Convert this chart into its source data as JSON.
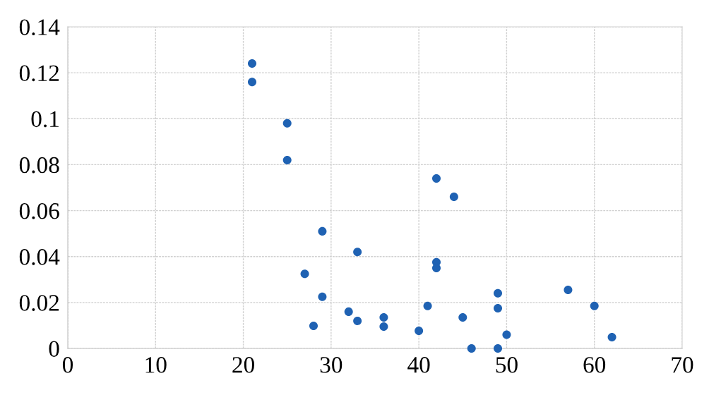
{
  "chart_data": {
    "type": "scatter",
    "x": [
      21,
      21,
      25,
      25,
      42,
      44,
      29,
      33,
      42,
      42,
      27,
      57,
      49,
      29,
      41,
      60,
      32,
      49,
      36,
      45,
      33,
      36,
      28,
      40,
      50,
      62,
      46,
      49
    ],
    "values": [
      0.124,
      0.116,
      0.098,
      0.082,
      0.074,
      0.066,
      0.051,
      0.042,
      0.0375,
      0.035,
      0.0325,
      0.0255,
      0.024,
      0.0225,
      0.0185,
      0.0185,
      0.016,
      0.0175,
      0.0135,
      0.0135,
      0.012,
      0.0095,
      0.0098,
      0.0077,
      0.006,
      0.0049,
      0,
      0
    ],
    "color": "#1f62b3",
    "marker": "circle",
    "xlim": [
      0,
      70
    ],
    "xticks": [
      0,
      10,
      20,
      30,
      40,
      50,
      60,
      70
    ],
    "ylim": [
      0,
      0.14
    ],
    "yticks": [
      0,
      0.02,
      0.04,
      0.06,
      0.08,
      0.1,
      0.12,
      0.14
    ],
    "grid": true
  }
}
